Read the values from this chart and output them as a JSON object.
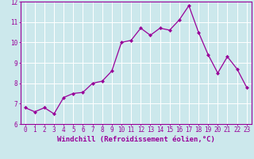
{
  "x": [
    0,
    1,
    2,
    3,
    4,
    5,
    6,
    7,
    8,
    9,
    10,
    11,
    12,
    13,
    14,
    15,
    16,
    17,
    18,
    19,
    20,
    21,
    22,
    23
  ],
  "y": [
    6.8,
    6.6,
    6.8,
    6.5,
    7.3,
    7.5,
    7.55,
    8.0,
    8.1,
    8.6,
    10.0,
    10.1,
    10.7,
    10.35,
    10.7,
    10.6,
    11.1,
    11.8,
    10.5,
    9.4,
    8.5,
    9.3,
    8.7,
    7.8
  ],
  "line_color": "#990099",
  "marker": "D",
  "markersize": 2.0,
  "linewidth": 0.9,
  "xlabel": "Windchill (Refroidissement éolien,°C)",
  "xlabel_fontsize": 6.5,
  "xlim": [
    -0.5,
    23.5
  ],
  "ylim": [
    6.0,
    12.0
  ],
  "yticks": [
    6,
    7,
    8,
    9,
    10,
    11,
    12
  ],
  "xticks": [
    0,
    1,
    2,
    3,
    4,
    5,
    6,
    7,
    8,
    9,
    10,
    11,
    12,
    13,
    14,
    15,
    16,
    17,
    18,
    19,
    20,
    21,
    22,
    23
  ],
  "background_color": "#cce8ec",
  "plot_bg_color": "#cce8ec",
  "grid_color": "#ffffff",
  "tick_color": "#990099",
  "label_color": "#990099",
  "spine_color": "#990099",
  "tick_fontsize": 5.5,
  "grid_linewidth": 0.7
}
